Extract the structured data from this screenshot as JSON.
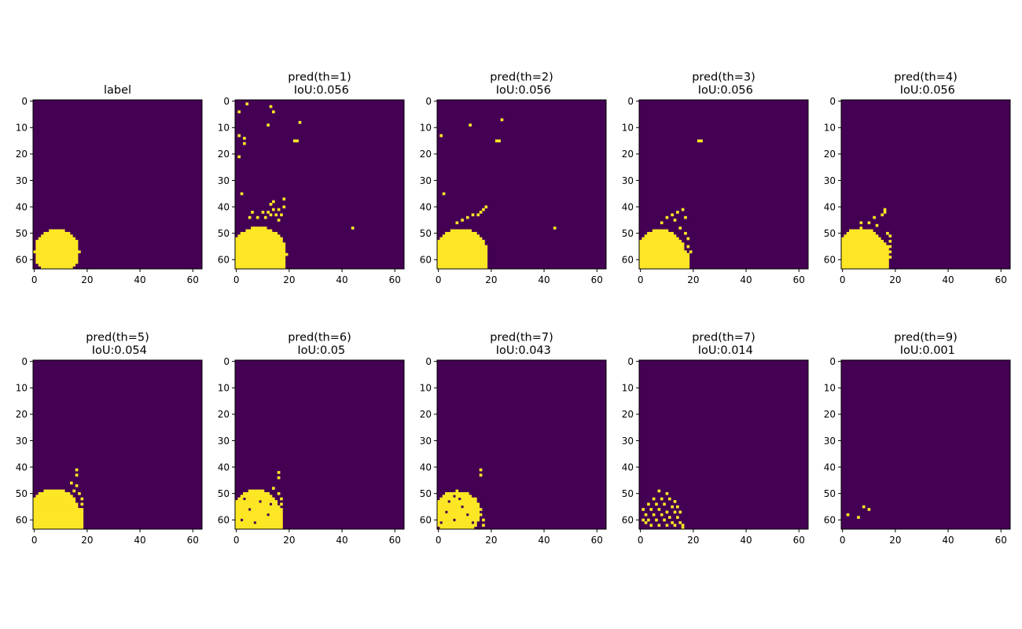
{
  "colors": {
    "background": "#440154",
    "foreground": "#fde725",
    "axis": "#000000",
    "figure_bg": "#ffffff"
  },
  "chart_data": [
    {
      "type": "heatmap",
      "title_lines": [
        "label"
      ],
      "xticks": [
        0,
        20,
        40,
        60
      ],
      "yticks": [
        0,
        10,
        20,
        30,
        40,
        50,
        60
      ],
      "xlim": [
        0,
        63
      ],
      "ylim": [
        0,
        63
      ],
      "grid_size": 64,
      "regions": [
        {
          "shape": "disk",
          "cx": 8.5,
          "cy": 57,
          "r": 8.5
        }
      ],
      "points": []
    },
    {
      "type": "heatmap",
      "title_lines": [
        "pred(th=1)",
        " IoU:0.056"
      ],
      "xticks": [
        0,
        20,
        40,
        60
      ],
      "yticks": [
        0,
        10,
        20,
        30,
        40,
        50,
        60
      ],
      "xlim": [
        0,
        63
      ],
      "ylim": [
        0,
        63
      ],
      "grid_size": 64,
      "regions": [
        {
          "shape": "disk",
          "cx": 8.5,
          "cy": 58,
          "r": 10.5
        },
        {
          "shape": "rect",
          "x0": 0,
          "y0": 53,
          "x1": 18,
          "y1": 63
        }
      ],
      "points": [
        [
          4,
          1
        ],
        [
          13,
          2
        ],
        [
          1,
          4
        ],
        [
          14,
          4
        ],
        [
          12,
          9
        ],
        [
          24,
          8
        ],
        [
          1,
          13
        ],
        [
          3,
          14
        ],
        [
          22,
          15
        ],
        [
          23,
          15
        ],
        [
          3,
          16
        ],
        [
          1,
          21
        ],
        [
          2,
          35
        ],
        [
          14,
          38
        ],
        [
          13,
          39
        ],
        [
          18,
          37
        ],
        [
          6,
          42
        ],
        [
          10,
          42
        ],
        [
          12,
          42
        ],
        [
          14,
          41
        ],
        [
          16,
          41
        ],
        [
          18,
          40
        ],
        [
          5,
          44
        ],
        [
          8,
          44
        ],
        [
          11,
          44
        ],
        [
          13,
          43
        ],
        [
          15,
          43
        ],
        [
          17,
          43
        ],
        [
          16,
          45
        ],
        [
          44,
          48
        ],
        [
          0,
          62
        ],
        [
          1,
          63
        ]
      ]
    },
    {
      "type": "heatmap",
      "title_lines": [
        "pred(th=2)",
        " IoU:0.056"
      ],
      "xticks": [
        0,
        20,
        40,
        60
      ],
      "yticks": [
        0,
        10,
        20,
        30,
        40,
        50,
        60
      ],
      "xlim": [
        0,
        63
      ],
      "ylim": [
        0,
        63
      ],
      "grid_size": 64,
      "regions": [
        {
          "shape": "disk",
          "cx": 8.5,
          "cy": 58,
          "r": 10
        },
        {
          "shape": "rect",
          "x0": 0,
          "y0": 55,
          "x1": 18,
          "y1": 63
        }
      ],
      "points": [
        [
          24,
          7
        ],
        [
          12,
          9
        ],
        [
          1,
          13
        ],
        [
          22,
          15
        ],
        [
          23,
          15
        ],
        [
          2,
          35
        ],
        [
          18,
          40
        ],
        [
          16,
          42
        ],
        [
          17,
          41
        ],
        [
          11,
          44
        ],
        [
          13,
          43
        ],
        [
          15,
          43
        ],
        [
          7,
          46
        ],
        [
          9,
          45
        ],
        [
          44,
          48
        ],
        [
          1,
          63
        ]
      ]
    },
    {
      "type": "heatmap",
      "title_lines": [
        "pred(th=3)",
        " IoU:0.056"
      ],
      "xticks": [
        0,
        20,
        40,
        60
      ],
      "yticks": [
        0,
        10,
        20,
        30,
        40,
        50,
        60
      ],
      "xlim": [
        0,
        63
      ],
      "ylim": [
        0,
        63
      ],
      "grid_size": 64,
      "regions": [
        {
          "shape": "disk",
          "cx": 7.5,
          "cy": 58,
          "r": 9.5
        },
        {
          "shape": "rect",
          "x0": 0,
          "y0": 56,
          "x1": 18,
          "y1": 63
        }
      ],
      "points": [
        [
          22,
          15
        ],
        [
          23,
          15
        ],
        [
          16,
          41
        ],
        [
          14,
          42
        ],
        [
          12,
          43
        ],
        [
          10,
          44
        ],
        [
          13,
          45
        ],
        [
          17,
          44
        ],
        [
          8,
          46
        ],
        [
          15,
          48
        ],
        [
          17,
          50
        ],
        [
          18,
          52
        ],
        [
          18,
          55
        ],
        [
          19,
          57
        ],
        [
          18,
          59
        ],
        [
          1,
          63
        ]
      ]
    },
    {
      "type": "heatmap",
      "title_lines": [
        "pred(th=4)",
        " IoU:0.056"
      ],
      "xticks": [
        0,
        20,
        40,
        60
      ],
      "yticks": [
        0,
        10,
        20,
        30,
        40,
        50,
        60
      ],
      "xlim": [
        0,
        63
      ],
      "ylim": [
        0,
        63
      ],
      "grid_size": 64,
      "regions": [
        {
          "shape": "disk",
          "cx": 7,
          "cy": 57,
          "r": 9
        },
        {
          "shape": "rect",
          "x0": 0,
          "y0": 53,
          "x1": 17,
          "y1": 63
        }
      ],
      "points": [
        [
          16,
          41
        ],
        [
          16,
          42
        ],
        [
          15,
          43
        ],
        [
          12,
          44
        ],
        [
          7,
          46
        ],
        [
          10,
          46
        ],
        [
          13,
          47
        ],
        [
          17,
          50
        ],
        [
          18,
          51
        ],
        [
          18,
          53
        ],
        [
          18,
          55
        ],
        [
          18,
          57
        ],
        [
          18,
          59
        ],
        [
          1,
          63
        ]
      ]
    },
    {
      "type": "heatmap",
      "title_lines": [
        "pred(th=5)",
        " IoU:0.054"
      ],
      "xticks": [
        0,
        20,
        40,
        60
      ],
      "yticks": [
        0,
        10,
        20,
        30,
        40,
        50,
        60
      ],
      "xlim": [
        0,
        63
      ],
      "ylim": [
        0,
        63
      ],
      "grid_size": 64,
      "regions": [
        {
          "shape": "disk",
          "cx": 7.5,
          "cy": 57.5,
          "r": 9.5
        },
        {
          "shape": "rect",
          "x0": 0,
          "y0": 55,
          "x1": 18,
          "y1": 63
        }
      ],
      "points": [
        [
          16,
          41
        ],
        [
          16,
          43
        ],
        [
          14,
          46
        ],
        [
          16,
          47
        ],
        [
          15,
          49
        ],
        [
          17,
          50
        ],
        [
          18,
          52
        ],
        [
          18,
          54
        ],
        [
          18,
          56
        ],
        [
          18,
          58
        ],
        [
          18,
          60
        ],
        [
          1,
          63
        ]
      ]
    },
    {
      "type": "heatmap",
      "title_lines": [
        "pred(th=6)",
        " IoU:0.05"
      ],
      "xticks": [
        0,
        20,
        40,
        60
      ],
      "yticks": [
        0,
        10,
        20,
        30,
        40,
        50,
        60
      ],
      "xlim": [
        0,
        63
      ],
      "ylim": [
        0,
        63
      ],
      "grid_size": 64,
      "regions": [
        {
          "shape": "disk",
          "cx": 7.5,
          "cy": 57.5,
          "r": 9
        },
        {
          "shape": "rect",
          "x0": 0,
          "y0": 54,
          "x1": 17,
          "y1": 63
        }
      ],
      "points": [
        [
          16,
          42
        ],
        [
          16,
          44
        ],
        [
          14,
          48
        ],
        [
          16,
          50
        ],
        [
          17,
          52
        ],
        [
          17,
          54
        ],
        [
          17,
          56
        ],
        [
          17,
          58
        ],
        [
          17,
          60
        ],
        [
          17,
          62
        ],
        [
          1,
          63
        ]
      ],
      "holes": [
        [
          3,
          52
        ],
        [
          5,
          56
        ],
        [
          9,
          53
        ],
        [
          12,
          58
        ],
        [
          2,
          60
        ],
        [
          13,
          54
        ],
        [
          7,
          61
        ]
      ]
    },
    {
      "type": "heatmap",
      "title_lines": [
        "pred(th=7)",
        " IoU:0.043"
      ],
      "xticks": [
        0,
        20,
        40,
        60
      ],
      "yticks": [
        0,
        10,
        20,
        30,
        40,
        50,
        60
      ],
      "xlim": [
        0,
        63
      ],
      "ylim": [
        0,
        63
      ],
      "grid_size": 64,
      "regions": [
        {
          "shape": "disk",
          "cx": 7,
          "cy": 57.5,
          "r": 8.5
        }
      ],
      "points": [
        [
          16,
          41
        ],
        [
          16,
          43
        ],
        [
          14,
          52
        ],
        [
          15,
          54
        ],
        [
          16,
          56
        ],
        [
          16,
          58
        ],
        [
          17,
          60
        ],
        [
          17,
          62
        ],
        [
          1,
          63
        ]
      ],
      "holes": [
        [
          2,
          50
        ],
        [
          4,
          53
        ],
        [
          6,
          51
        ],
        [
          9,
          55
        ],
        [
          3,
          57
        ],
        [
          11,
          58
        ],
        [
          6,
          60
        ],
        [
          13,
          61
        ],
        [
          1,
          61
        ],
        [
          8,
          52
        ]
      ]
    },
    {
      "type": "heatmap",
      "title_lines": [
        "pred(th=7)",
        " IoU:0.014"
      ],
      "xticks": [
        0,
        20,
        40,
        60
      ],
      "yticks": [
        0,
        10,
        20,
        30,
        40,
        50,
        60
      ],
      "xlim": [
        0,
        63
      ],
      "ylim": [
        0,
        63
      ],
      "grid_size": 64,
      "regions": [],
      "points": [
        [
          7,
          49
        ],
        [
          10,
          50
        ],
        [
          5,
          52
        ],
        [
          8,
          52
        ],
        [
          11,
          52
        ],
        [
          13,
          53
        ],
        [
          3,
          54
        ],
        [
          6,
          54
        ],
        [
          9,
          54
        ],
        [
          12,
          55
        ],
        [
          14,
          55
        ],
        [
          1,
          56
        ],
        [
          4,
          56
        ],
        [
          7,
          56
        ],
        [
          10,
          57
        ],
        [
          13,
          57
        ],
        [
          15,
          57
        ],
        [
          2,
          58
        ],
        [
          5,
          58
        ],
        [
          8,
          58
        ],
        [
          11,
          59
        ],
        [
          14,
          59
        ],
        [
          1,
          60
        ],
        [
          3,
          60
        ],
        [
          6,
          60
        ],
        [
          9,
          60
        ],
        [
          12,
          61
        ],
        [
          15,
          61
        ],
        [
          4,
          62
        ],
        [
          7,
          62
        ],
        [
          10,
          62
        ],
        [
          16,
          62
        ],
        [
          2,
          61
        ],
        [
          13,
          62
        ],
        [
          16,
          63
        ]
      ]
    },
    {
      "type": "heatmap",
      "title_lines": [
        "pred(th=9)",
        " IoU:0.001"
      ],
      "xticks": [
        0,
        20,
        40,
        60
      ],
      "yticks": [
        0,
        10,
        20,
        30,
        40,
        50,
        60
      ],
      "xlim": [
        0,
        63
      ],
      "ylim": [
        0,
        63
      ],
      "grid_size": 64,
      "regions": [],
      "points": [
        [
          8,
          55
        ],
        [
          10,
          56
        ],
        [
          2,
          58
        ],
        [
          6,
          59
        ]
      ]
    }
  ]
}
